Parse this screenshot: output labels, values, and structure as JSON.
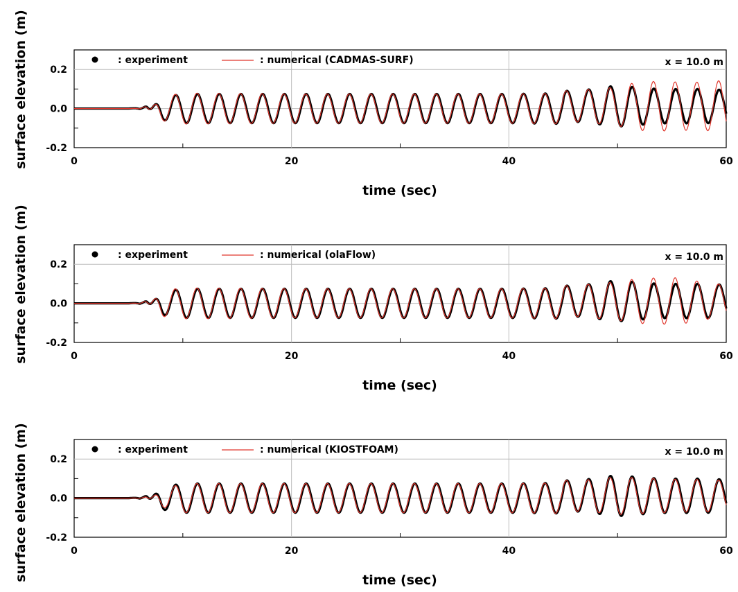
{
  "chart_data": [
    {
      "type": "line",
      "xlabel": "time (sec)",
      "ylabel": "surface elevation (m)",
      "xlim": [
        0,
        60
      ],
      "ylim": [
        -0.2,
        0.3
      ],
      "xticks": [
        "0",
        "20",
        "40",
        "60"
      ],
      "yticks": [
        "-0.2",
        "0.0",
        "0.2"
      ],
      "grid": true,
      "legend_position": "top",
      "annotation": "x = 10.0 m",
      "series": [
        {
          "name": ": experiment",
          "color": "#000000",
          "marker": "circle",
          "values": [
            [
              0,
              0
            ],
            [
              6,
              0.01
            ],
            [
              6.7,
              -0.03
            ],
            [
              8,
              0.065
            ],
            [
              10,
              0.085
            ],
            [
              20,
              0.085
            ],
            [
              30,
              0.085
            ],
            [
              40,
              0.085
            ],
            [
              46,
              0.09
            ],
            [
              47.8,
              0.1
            ],
            [
              49.8,
              0.12
            ],
            [
              51.8,
              0.11
            ],
            [
              53.8,
              0.1
            ],
            [
              55.8,
              0.1
            ],
            [
              57.8,
              0.1
            ],
            [
              59.8,
              0.095
            ]
          ]
        },
        {
          "name": ": numerical (CADMAS-SURF)",
          "color": "#e0352b",
          "values": [
            [
              0,
              0
            ],
            [
              6,
              0.005
            ],
            [
              6.7,
              -0.03
            ],
            [
              8,
              0.07
            ],
            [
              10,
              0.09
            ],
            [
              20,
              0.085
            ],
            [
              30,
              0.085
            ],
            [
              40,
              0.085
            ],
            [
              46,
              0.09
            ],
            [
              47.8,
              0.1
            ],
            [
              49.8,
              0.11
            ],
            [
              51.8,
              0.14
            ],
            [
              53.8,
              0.145
            ],
            [
              55.8,
              0.14
            ],
            [
              57.8,
              0.14
            ],
            [
              59.8,
              0.15
            ]
          ]
        }
      ]
    },
    {
      "type": "line",
      "xlabel": "time (sec)",
      "ylabel": "surface elevation (m)",
      "xlim": [
        0,
        60
      ],
      "ylim": [
        -0.2,
        0.3
      ],
      "xticks": [
        "0",
        "20",
        "40",
        "60"
      ],
      "yticks": [
        "-0.2",
        "0.0",
        "0.2"
      ],
      "grid": true,
      "legend_position": "top",
      "annotation": "x = 10.0 m",
      "series": [
        {
          "name": ": experiment",
          "color": "#000000",
          "marker": "circle",
          "values": [
            [
              0,
              0
            ],
            [
              6,
              0.01
            ],
            [
              6.7,
              -0.03
            ],
            [
              8,
              0.065
            ],
            [
              10,
              0.085
            ],
            [
              20,
              0.085
            ],
            [
              30,
              0.085
            ],
            [
              40,
              0.085
            ],
            [
              46,
              0.09
            ],
            [
              47.8,
              0.1
            ],
            [
              49.8,
              0.12
            ],
            [
              51.8,
              0.11
            ],
            [
              53.8,
              0.1
            ],
            [
              55.8,
              0.1
            ],
            [
              57.8,
              0.1
            ],
            [
              59.8,
              0.095
            ]
          ]
        },
        {
          "name": ": numerical (olaFlow)",
          "color": "#e0352b",
          "values": [
            [
              0,
              0
            ],
            [
              6,
              0.005
            ],
            [
              6.7,
              -0.03
            ],
            [
              8,
              0.075
            ],
            [
              10,
              0.09
            ],
            [
              20,
              0.085
            ],
            [
              30,
              0.085
            ],
            [
              40,
              0.085
            ],
            [
              46,
              0.09
            ],
            [
              47.8,
              0.1
            ],
            [
              49.8,
              0.11
            ],
            [
              51.8,
              0.13
            ],
            [
              53.8,
              0.135
            ],
            [
              55.8,
              0.135
            ],
            [
              57.8,
              0.11
            ],
            [
              59.8,
              0.095
            ]
          ]
        }
      ]
    },
    {
      "type": "line",
      "xlabel": "time (sec)",
      "ylabel": "surface elevation (m)",
      "xlim": [
        0,
        60
      ],
      "ylim": [
        -0.2,
        0.3
      ],
      "xticks": [
        "0",
        "20",
        "40",
        "60"
      ],
      "yticks": [
        "-0.2",
        "0.0",
        "0.2"
      ],
      "grid": true,
      "legend_position": "top",
      "annotation": "x = 10.0 m",
      "series": [
        {
          "name": ": experiment",
          "color": "#000000",
          "marker": "circle",
          "values": [
            [
              0,
              0
            ],
            [
              6,
              0.01
            ],
            [
              6.7,
              -0.03
            ],
            [
              8,
              0.065
            ],
            [
              10,
              0.085
            ],
            [
              20,
              0.085
            ],
            [
              30,
              0.085
            ],
            [
              40,
              0.085
            ],
            [
              46,
              0.09
            ],
            [
              47.8,
              0.1
            ],
            [
              49.8,
              0.12
            ],
            [
              51.8,
              0.11
            ],
            [
              53.8,
              0.1
            ],
            [
              55.8,
              0.1
            ],
            [
              57.8,
              0.1
            ],
            [
              59.8,
              0.095
            ]
          ]
        },
        {
          "name": ": numerical (KIOSTFOAM)",
          "color": "#e0352b",
          "values": [
            [
              0,
              0
            ],
            [
              6,
              0.005
            ],
            [
              6.7,
              -0.02
            ],
            [
              8,
              0.05
            ],
            [
              10,
              0.085
            ],
            [
              20,
              0.085
            ],
            [
              30,
              0.085
            ],
            [
              40,
              0.085
            ],
            [
              46,
              0.09
            ],
            [
              47.8,
              0.095
            ],
            [
              49.8,
              0.11
            ],
            [
              51.8,
              0.105
            ],
            [
              53.8,
              0.1
            ],
            [
              55.8,
              0.095
            ],
            [
              57.8,
              0.095
            ],
            [
              59.8,
              0.09
            ]
          ]
        }
      ]
    }
  ]
}
